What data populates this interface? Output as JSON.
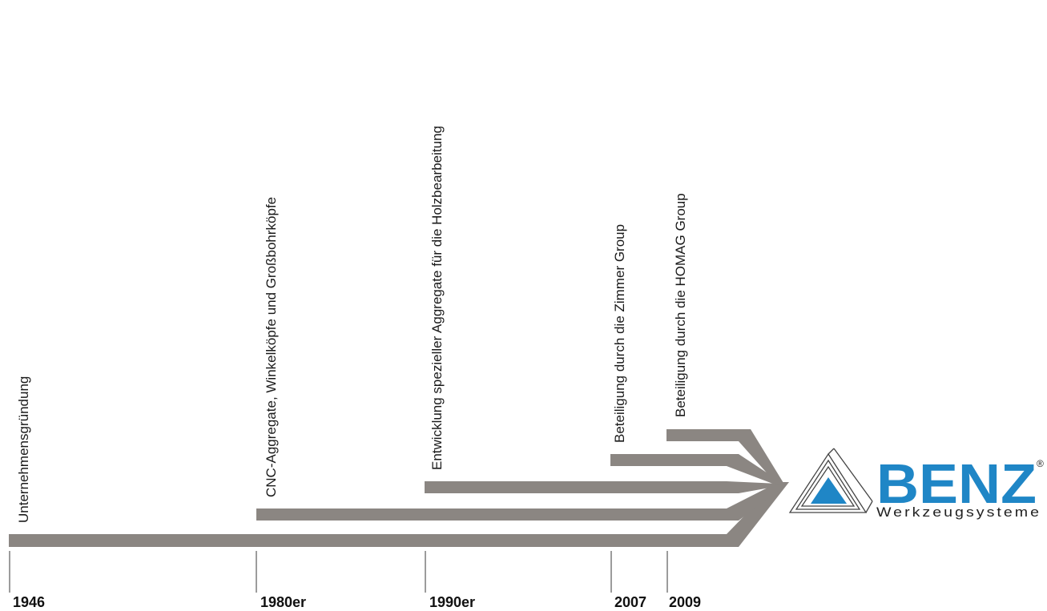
{
  "colors": {
    "band": "#8b8682",
    "tick": "#7a7a7a",
    "text": "#1a1a1a",
    "logo_blue": "#1f86c6",
    "logo_outline": "#444444"
  },
  "timeline": {
    "milestones": [
      {
        "year": "1946",
        "label": "Unternehmensgründung"
      },
      {
        "year": "1980er",
        "label": "CNC-Aggregate, Winkelköpfe und Großbohrköpfe"
      },
      {
        "year": "1990er",
        "label": "Entwicklung spezieller Aggregate für die Holzbearbeitung"
      },
      {
        "year": "2007",
        "label": "Beteiligung durch die Zimmer Group"
      },
      {
        "year": "2009",
        "label": "Beteiligung durch die HOMAG Group"
      }
    ]
  },
  "logo": {
    "brand": "BENZ",
    "registered": "®",
    "subtitle": "Werkzeugsysteme",
    "icon": "triangle-logo-icon"
  }
}
